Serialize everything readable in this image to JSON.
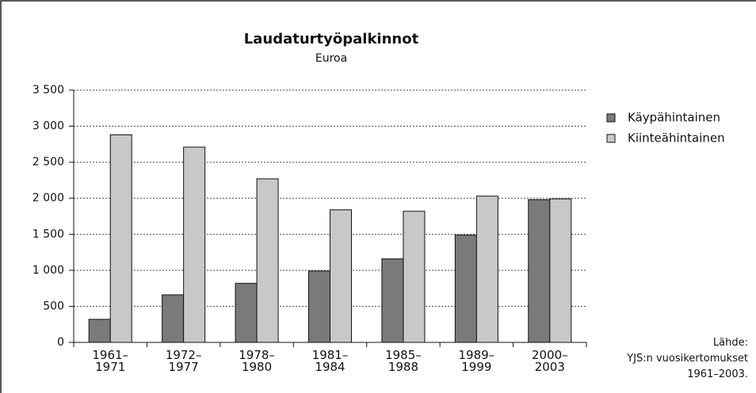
{
  "chart_data": {
    "type": "bar",
    "title": "Laudaturtyöpalkinnot",
    "subtitle": "Euroa",
    "categories": [
      "1961–\n1971",
      "1972–\n1977",
      "1978–\n1980",
      "1981–\n1984",
      "1985–\n1988",
      "1989–\n1999",
      "2000–\n2003"
    ],
    "series": [
      {
        "name": "Käypähintainen",
        "color": "#7a7a7a",
        "values": [
          320,
          660,
          820,
          990,
          1160,
          1490,
          1980
        ]
      },
      {
        "name": "Kiinteähintainen",
        "color": "#c8c8c8",
        "values": [
          2880,
          2710,
          2270,
          1840,
          1820,
          2030,
          1990
        ]
      }
    ],
    "ylim": [
      0,
      3500
    ],
    "yticks": [
      0,
      500,
      {
        "value": 1000,
        "label": "1 000"
      },
      {
        "value": 1500,
        "label": "1 500"
      },
      {
        "value": 2000,
        "label": "2 000"
      },
      {
        "value": 2500,
        "label": "2 500"
      },
      {
        "value": 3000,
        "label": "3 000"
      },
      {
        "value": 3500,
        "label": "3 500"
      }
    ],
    "grid": true,
    "legend": "right",
    "source": "Lähde:\nYJS:n vuosikertomukset\n1961–2003."
  }
}
